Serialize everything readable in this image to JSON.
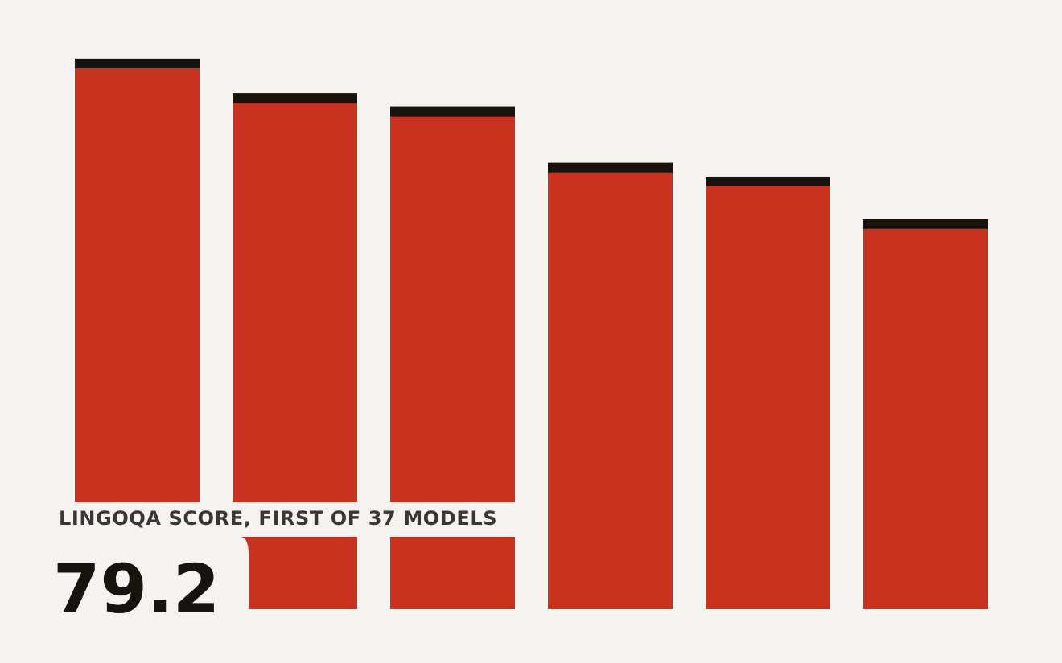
{
  "chart_data": {
    "type": "bar",
    "subtitle": "LINGOQA SCORE, FIRST OF 37 MODELS",
    "values": [
      79.2,
      74.2,
      72.3,
      64.2,
      62.2,
      56.1
    ],
    "color": "#c9321f",
    "ylim": [
      0,
      80
    ]
  }
}
